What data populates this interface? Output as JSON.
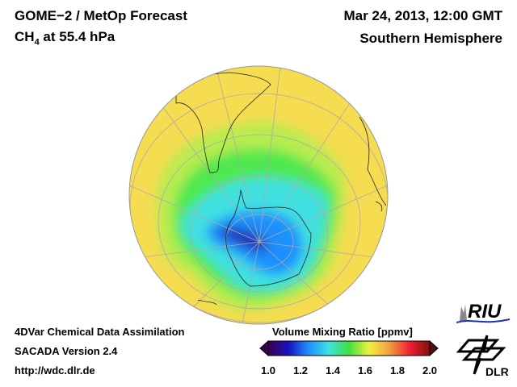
{
  "header": {
    "title": "GOME−2 / MetOp Forecast",
    "species": "CH",
    "species_sub": "4",
    "level": " at 55.4 hPa",
    "date": "Mar 24, 2013, 12:00 GMT",
    "region": "Southern Hemisphere"
  },
  "footer": {
    "line1": "4DVar Chemical Data Assimilation",
    "line2": "SACADA Version 2.4",
    "line3": "http://wdc.dlr.de"
  },
  "colorbar": {
    "title": "Volume Mixing Ratio [ppmv]",
    "ticks": [
      "1.0",
      "1.2",
      "1.4",
      "1.6",
      "1.8",
      "2.0"
    ],
    "range": [
      1.0,
      2.0
    ],
    "colors": [
      "#3a0050",
      "#1a10c0",
      "#1e90ff",
      "#40e0e0",
      "#40e040",
      "#f0f040",
      "#f0a040",
      "#f02030",
      "#801010"
    ]
  },
  "logos": {
    "riu": "RIU",
    "dlr": "DLR"
  },
  "map": {
    "projection": "orthographic",
    "center": "South Pole",
    "field_color_background": "#f5dc50"
  }
}
